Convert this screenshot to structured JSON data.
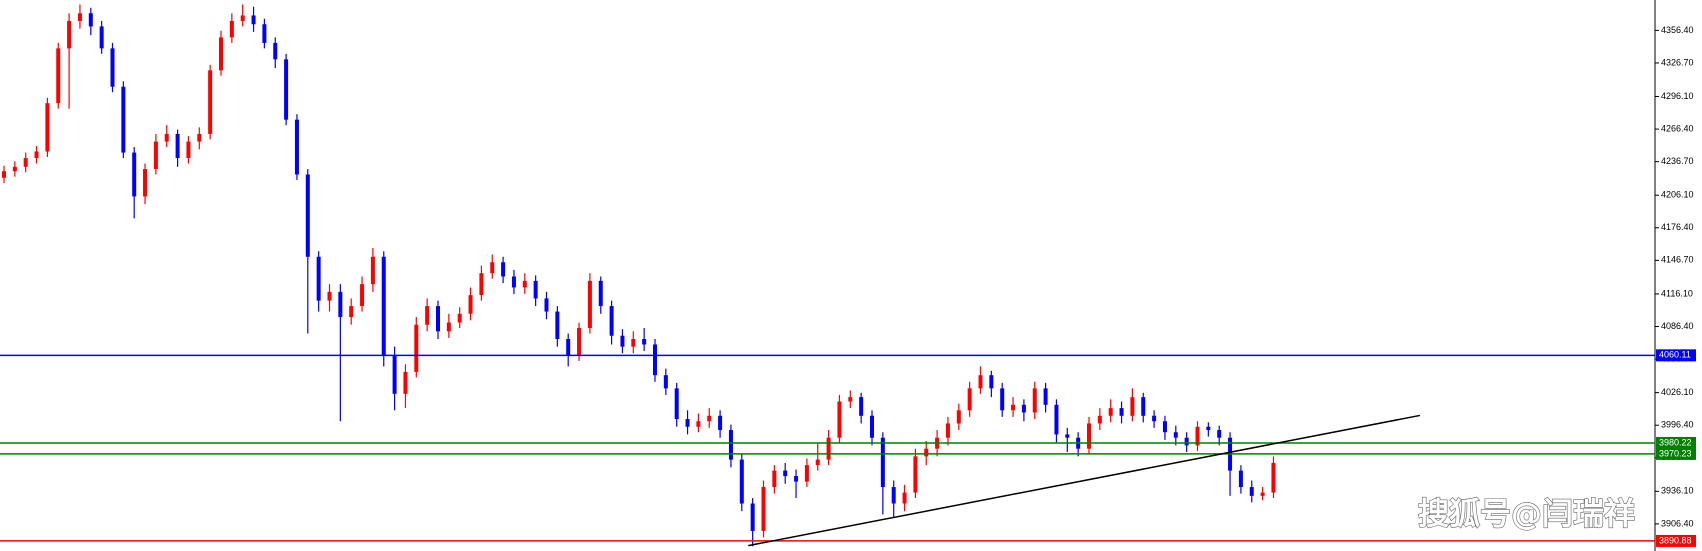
{
  "chart_data": {
    "type": "candlestick",
    "up_color": "#ff0000",
    "down_color": "#0000ff",
    "open": [
      4222,
      4228,
      4232,
      4240,
      4246,
      4290,
      4340,
      4365,
      4372,
      4360,
      4340,
      4305,
      4245,
      4205,
      4230,
      4255,
      4262,
      4240,
      4255,
      4262,
      4320,
      4350,
      4365,
      4370,
      4362,
      4345,
      4330,
      4275,
      4225,
      4150,
      4110,
      4118,
      4095,
      4105,
      4125,
      4150,
      4060,
      4025,
      4045,
      4088,
      4105,
      4082,
      4090,
      4098,
      4115,
      4135,
      4145,
      4132,
      4122,
      4128,
      4112,
      4100,
      4075,
      4060,
      4085,
      4128,
      4105,
      4078,
      4068,
      4075,
      4070,
      4042,
      4030,
      4002,
      3995,
      4000,
      4005,
      3992,
      3965,
      3925,
      3900,
      3940,
      3955,
      3950,
      3945,
      3960,
      3965,
      3985,
      4018,
      4022,
      4005,
      3985,
      3940,
      3925,
      3935,
      3968,
      3975,
      3985,
      3998,
      4010,
      4030,
      4042,
      4030,
      4010,
      4015,
      4008,
      4030,
      4015,
      3988,
      3985,
      3975,
      3998,
      4005,
      4012,
      4005,
      4022,
      4005,
      4000,
      3990,
      3985,
      3978,
      3995,
      3992,
      3985,
      3955,
      3940,
      3932,
      3935
    ],
    "high": [
      4233,
      4237,
      4245,
      4251,
      4295,
      4345,
      4372,
      4380,
      4377,
      4365,
      4345,
      4310,
      4250,
      4235,
      4262,
      4270,
      4266,
      4260,
      4268,
      4325,
      4356,
      4372,
      4380,
      4378,
      4367,
      4350,
      4335,
      4280,
      4230,
      4155,
      4125,
      4125,
      4112,
      4132,
      4158,
      4155,
      4068,
      4052,
      4095,
      4112,
      4110,
      4098,
      4104,
      4122,
      4142,
      4152,
      4150,
      4138,
      4135,
      4133,
      4118,
      4105,
      4080,
      4090,
      4135,
      4132,
      4110,
      4084,
      4082,
      4085,
      4075,
      4048,
      4035,
      4010,
      4007,
      4012,
      4010,
      3997,
      3970,
      3930,
      3946,
      3960,
      3962,
      3956,
      3966,
      3980,
      3992,
      4024,
      4028,
      4026,
      4010,
      3990,
      3946,
      3942,
      3975,
      3982,
      3992,
      4004,
      4016,
      4036,
      4050,
      4046,
      4035,
      4022,
      4020,
      4036,
      4035,
      4020,
      3994,
      3990,
      4004,
      4012,
      4020,
      4018,
      4030,
      4026,
      4010,
      4005,
      3996,
      3990,
      4000,
      3999,
      3996,
      3990,
      3960,
      3946,
      3940,
      3968
    ],
    "low": [
      4217,
      4223,
      4227,
      4235,
      4241,
      4285,
      4285,
      4358,
      4352,
      4335,
      4300,
      4240,
      4185,
      4198,
      4225,
      4250,
      4232,
      4235,
      4248,
      4257,
      4315,
      4345,
      4360,
      4355,
      4340,
      4322,
      4270,
      4220,
      4080,
      4100,
      4100,
      4000,
      4088,
      4100,
      4118,
      4050,
      4010,
      4012,
      4040,
      4082,
      4075,
      4076,
      4085,
      4092,
      4110,
      4130,
      4126,
      4116,
      4116,
      4105,
      4093,
      4068,
      4050,
      4055,
      4080,
      4098,
      4070,
      4062,
      4062,
      4064,
      4036,
      4024,
      3995,
      3988,
      3990,
      3994,
      3985,
      3958,
      3918,
      3886,
      3894,
      3934,
      3943,
      3930,
      3940,
      3955,
      3960,
      3980,
      4012,
      3998,
      3978,
      3915,
      3912,
      3918,
      3930,
      3960,
      3968,
      3978,
      3992,
      4004,
      4025,
      4022,
      4004,
      4004,
      4000,
      4002,
      4008,
      3980,
      3972,
      3968,
      3970,
      3992,
      3999,
      3998,
      4000,
      3999,
      3994,
      3983,
      3978,
      3972,
      3973,
      3986,
      3978,
      3932,
      3934,
      3926,
      3928,
      3930
    ],
    "close": [
      4228,
      4232,
      4240,
      4246,
      4290,
      4340,
      4365,
      4372,
      4360,
      4340,
      4305,
      4245,
      4205,
      4230,
      4255,
      4262,
      4240,
      4255,
      4262,
      4320,
      4350,
      4365,
      4370,
      4362,
      4345,
      4330,
      4275,
      4225,
      4150,
      4110,
      4118,
      4095,
      4105,
      4125,
      4150,
      4060,
      4025,
      4045,
      4088,
      4105,
      4082,
      4090,
      4098,
      4115,
      4135,
      4145,
      4132,
      4122,
      4128,
      4112,
      4100,
      4075,
      4060,
      4085,
      4128,
      4105,
      4078,
      4068,
      4075,
      4070,
      4042,
      4030,
      4002,
      3995,
      4000,
      4005,
      3992,
      3965,
      3925,
      3900,
      3940,
      3955,
      3950,
      3945,
      3960,
      3965,
      3985,
      4018,
      4022,
      4005,
      3985,
      3940,
      3925,
      3935,
      3968,
      3975,
      3985,
      3998,
      4010,
      4030,
      4042,
      4030,
      4010,
      4015,
      4008,
      4030,
      4015,
      3988,
      3985,
      3975,
      3998,
      4005,
      4012,
      4005,
      4022,
      4005,
      4000,
      3990,
      3985,
      3978,
      3995,
      3992,
      3985,
      3955,
      3940,
      3932,
      3935,
      3962
    ],
    "ylim": [
      3881.7,
      4384.1
    ],
    "yticks": [
      {
        "value": 4356.4,
        "label": "4356.40"
      },
      {
        "value": 4326.7,
        "label": "4326.70"
      },
      {
        "value": 4296.1,
        "label": "4296.10"
      },
      {
        "value": 4266.4,
        "label": "4266.40"
      },
      {
        "value": 4236.7,
        "label": "4236.70"
      },
      {
        "value": 4206.1,
        "label": "4206.10"
      },
      {
        "value": 4176.4,
        "label": "4176.40"
      },
      {
        "value": 4146.7,
        "label": "4146.70"
      },
      {
        "value": 4116.1,
        "label": "4116.10"
      },
      {
        "value": 4086.4,
        "label": "4086.40"
      },
      {
        "value": 4056.7,
        "label": "4056.70"
      },
      {
        "value": 4026.1,
        "label": "4026.10"
      },
      {
        "value": 3996.4,
        "label": "3996.40"
      },
      {
        "value": 3966.7,
        "label": "3966.70"
      },
      {
        "value": 3936.1,
        "label": "3936.10"
      },
      {
        "value": 3906.4,
        "label": "3906.40"
      }
    ],
    "levels": [
      {
        "value": 4060.11,
        "color": "#0000ff"
      },
      {
        "value": 3980.22,
        "color": "#008000"
      },
      {
        "value": 3970.23,
        "color": "#008000"
      },
      {
        "value": 3890.88,
        "color": "#ff0000"
      }
    ],
    "trendline": {
      "x": [
        68.6,
        130.5
      ],
      "values": [
        3886.6,
        4005.3
      ],
      "color": "#000000"
    },
    "watermark": "搜狐号@闫瑞祥"
  }
}
